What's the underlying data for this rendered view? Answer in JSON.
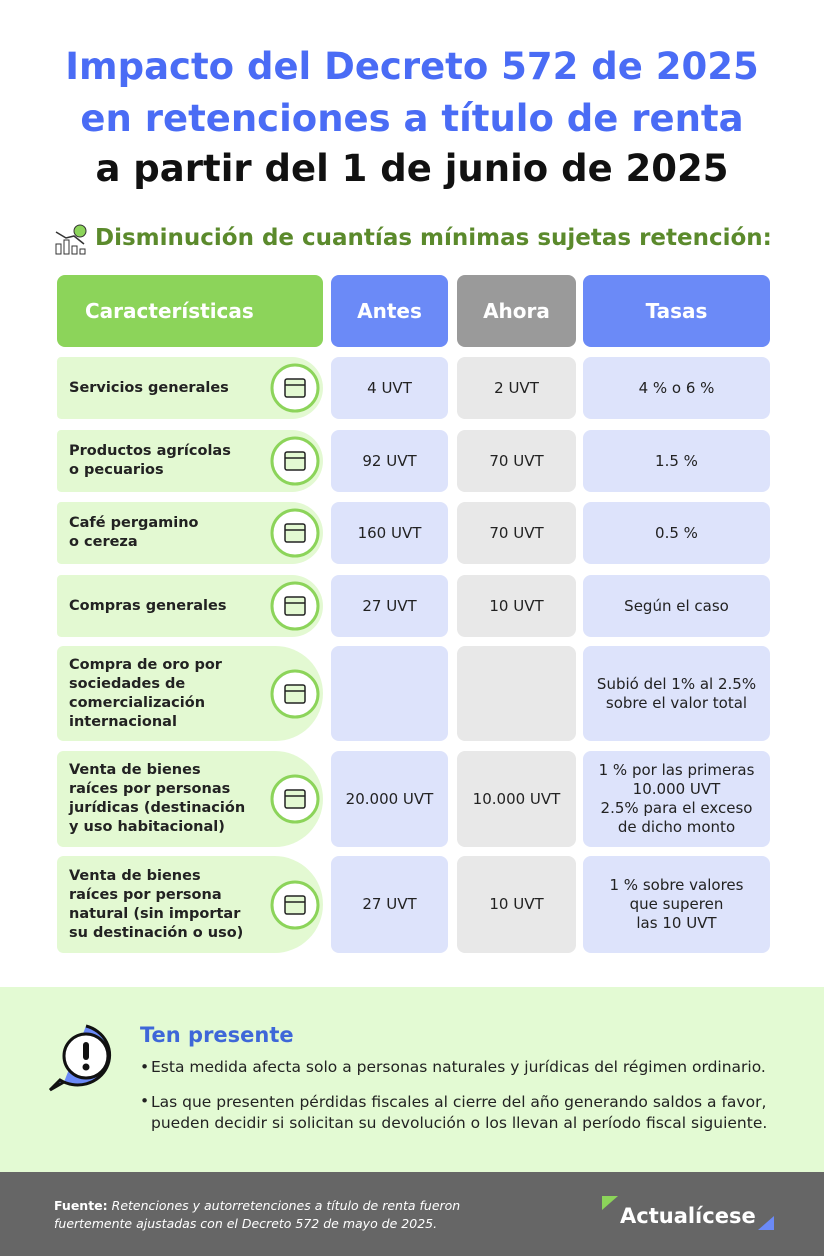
{
  "header": {
    "title_line1": "Impacto del Decreto 572 de 2025",
    "title_line2": "en retenciones a título de renta",
    "title_line3": "a partir del 1 de junio de 2025"
  },
  "section_title": "Disminución de cuantías mínimas sujetas retención:",
  "table": {
    "columns": [
      "Características",
      "Antes",
      "Ahora",
      "Tasas"
    ],
    "rows": [
      [
        "Servicios generales",
        "4 UVT",
        "2 UVT",
        "4 % o 6 %"
      ],
      [
        "Productos agrícolas\no pecuarios",
        "92 UVT",
        "70 UVT",
        "1.5 %"
      ],
      [
        "Café pergamino\no cereza",
        "160 UVT",
        "70 UVT",
        "0.5 %"
      ],
      [
        "Compras generales",
        "27 UVT",
        "10 UVT",
        "Según el caso"
      ],
      [
        "Compra de oro por\nsociedades de\ncomercialización\ninternacional",
        null,
        null,
        "Subió del 1% al 2.5%\nsobre el valor total"
      ],
      [
        "Venta de bienes\nraíces por personas\njurídicas (destinación\ny uso habitacional)",
        "20.000 UVT",
        "10.000 UVT",
        "1 % por las primeras\n10.000 UVT\n2.5% para el exceso\nde dicho monto"
      ],
      [
        "Venta de bienes\nraíces por persona\nnatural (sin importar\nsu destinación o uso)",
        "27 UVT",
        "10 UVT",
        "1 % sobre valores\nque superen\nlas 10 UVT"
      ]
    ]
  },
  "note": {
    "title": "Ten presente",
    "items": [
      "Esta medida afecta solo a personas naturales y jurídicas del régimen ordinario.",
      "Las que presenten pérdidas fiscales al cierre del año generando saldos a favor,\npueden decidir si solicitan su devolución o los llevan al período fiscal siguiente."
    ]
  },
  "footer": {
    "source_label": "Fuente:",
    "source_text": "Retenciones y autorretenciones a título de renta fueron\nfuertemente ajustadas con el Decreto 572 de mayo de 2025.",
    "brand": "Actualícese"
  }
}
